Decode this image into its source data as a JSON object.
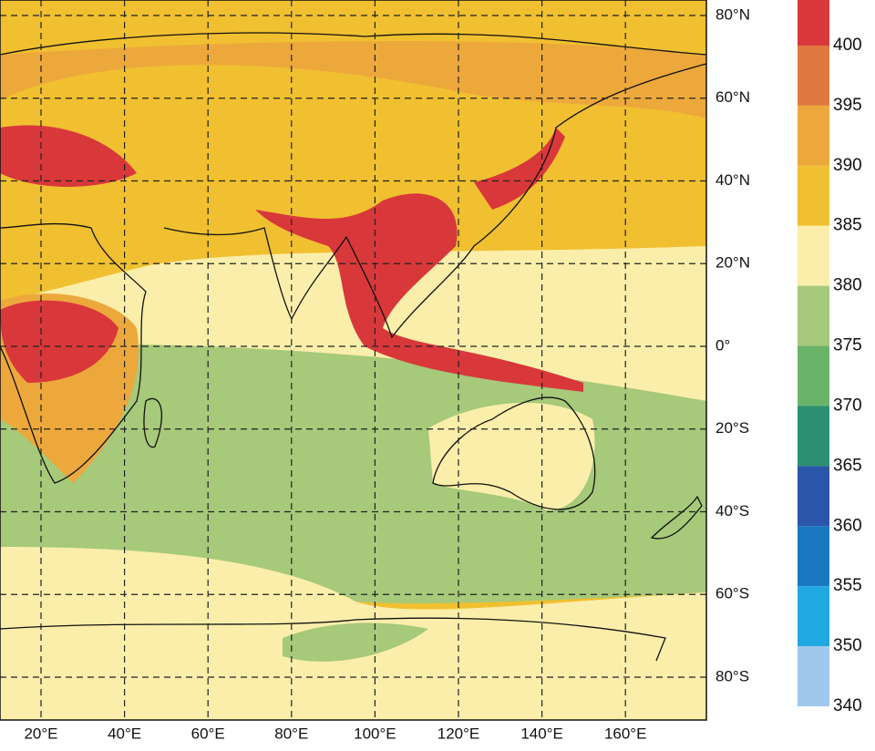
{
  "map": {
    "lat_labels": [
      "80°N",
      "60°N",
      "40°N",
      "20°N",
      "0°",
      "20°S",
      "40°S",
      "60°S",
      "80°S"
    ],
    "lon_labels": [
      "20°E",
      "40°E",
      "60°E",
      "80°E",
      "100°E",
      "120°E",
      "140°E",
      "160°E"
    ]
  },
  "colorbar": {
    "labels": [
      "400",
      "395",
      "390",
      "385",
      "380",
      "375",
      "370",
      "365",
      "360",
      "355",
      "350",
      "340"
    ],
    "colors": [
      "#d8383a",
      "#e0793f",
      "#eda83c",
      "#f0c030",
      "#fbeeaa",
      "#a6c97a",
      "#6ab46a",
      "#2a9070",
      "#2a55a8",
      "#1a78c0",
      "#20a8e0",
      "#a0c8ec"
    ]
  }
}
